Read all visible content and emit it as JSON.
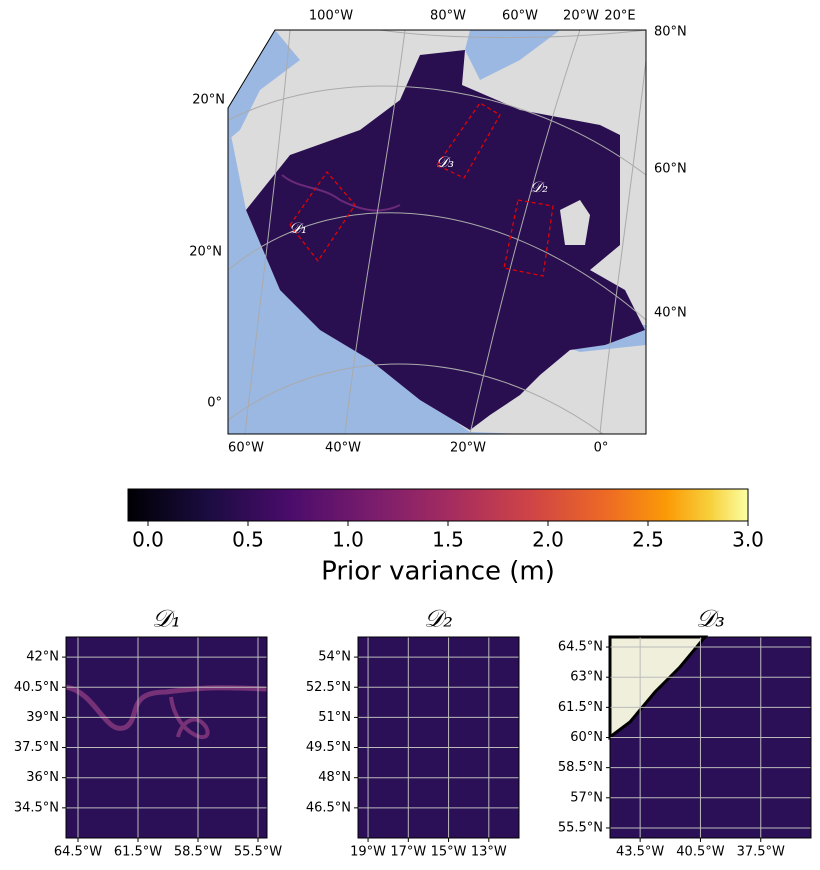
{
  "main_map": {
    "lon_labels_top": [
      "100°W",
      "80°W",
      "60°W",
      "20°W",
      "20°E"
    ],
    "lat_labels_right": [
      "80°N",
      "60°N",
      "40°N"
    ],
    "lat_labels_left": [
      "20°N",
      "20°N",
      "0°"
    ],
    "lon_labels_bottom": [
      "60°W",
      "40°W",
      "20°W",
      "0°"
    ],
    "regions": [
      "𝒟₁",
      "𝒟₂",
      "𝒟₃"
    ]
  },
  "colorbar": {
    "label": "Prior variance (m)",
    "xlim": [
      -0.1,
      3.0
    ],
    "xticks": [
      {
        "value": 0,
        "label": "0.0"
      },
      0.5,
      {
        "value": 1,
        "label": "1.0"
      },
      1.5,
      {
        "value": 2,
        "label": "2.0"
      },
      2.5,
      {
        "value": 3,
        "label": "3.0"
      }
    ]
  },
  "panels": [
    {
      "title": "𝒟₁",
      "xlim": [
        -65.1,
        -55.05
      ],
      "ylim": [
        33.0,
        43.0
      ],
      "xticks": [
        {
          "value": -64.5,
          "label": "64.5°W"
        },
        {
          "value": -61.5,
          "label": "61.5°W"
        },
        {
          "value": -58.5,
          "label": "58.5°W"
        },
        {
          "value": -55.5,
          "label": "55.5°W"
        }
      ],
      "yticks": [
        {
          "value": 34.5,
          "label": "34.5°N"
        },
        {
          "value": 36,
          "label": "36°N"
        },
        {
          "value": 37.5,
          "label": "37.5°N"
        },
        {
          "value": 39,
          "label": "39°N"
        },
        {
          "value": 40.5,
          "label": "40.5°N"
        },
        {
          "value": 42,
          "label": "42°N"
        }
      ]
    },
    {
      "title": "𝒟₂",
      "xlim": [
        -19.5,
        -11.5
      ],
      "ylim": [
        45.0,
        55.0
      ],
      "xticks": [
        {
          "value": -19,
          "label": "19°W"
        },
        {
          "value": -17,
          "label": "17°W"
        },
        {
          "value": -15,
          "label": "15°W"
        },
        {
          "value": -13,
          "label": "13°W"
        }
      ],
      "yticks": [
        {
          "value": 46.5,
          "label": "46.5°N"
        },
        {
          "value": 48,
          "label": "48°N"
        },
        {
          "value": 49.5,
          "label": "49.5°N"
        },
        {
          "value": 51,
          "label": "51°N"
        },
        {
          "value": 52.5,
          "label": "52.5°N"
        },
        {
          "value": 54,
          "label": "54°N"
        }
      ]
    },
    {
      "title": "𝒟₃",
      "xlim": [
        -45.0,
        -35.0
      ],
      "ylim": [
        55.0,
        65.0
      ],
      "xticks": [
        {
          "value": -43.5,
          "label": "43.5°W"
        },
        {
          "value": -40.5,
          "label": "40.5°W"
        },
        {
          "value": -37.5,
          "label": "37.5°W"
        }
      ],
      "yticks": [
        {
          "value": 55.5,
          "label": "55.5°N"
        },
        {
          "value": 57,
          "label": "57°N"
        },
        {
          "value": 58.5,
          "label": "58.5°N"
        },
        {
          "value": 60,
          "label": "60°N"
        },
        {
          "value": 61.5,
          "label": "61.5°N"
        },
        {
          "value": 63,
          "label": "63°N"
        },
        {
          "value": 64.5,
          "label": "64.5°N"
        }
      ]
    }
  ]
}
